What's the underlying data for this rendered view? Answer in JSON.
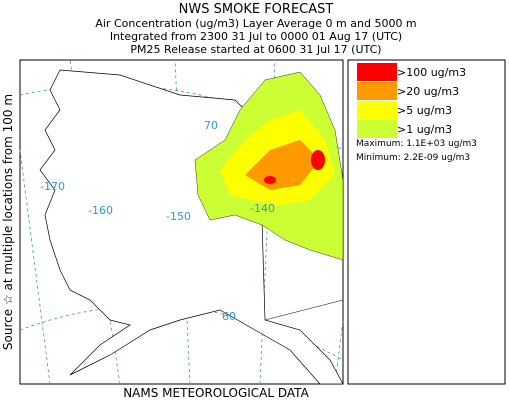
{
  "header": {
    "title": "NWS SMOKE FORECAST",
    "lines": [
      "Air Concentration (ug/m3) Layer Average    0 m and  5000 m",
      "Integrated from 2300 31 Jul to 0000 01 Aug 17 (UTC)",
      "PM25 Release started at 0600 31 Jul 17 (UTC)"
    ]
  },
  "side_label": "Source ☆ at multiple locations   from   100 m",
  "footer": "NAMS METEOROLOGICAL DATA",
  "map": {
    "labels": [
      "-170",
      "-160",
      "-150",
      "-140",
      "70",
      "60"
    ]
  },
  "legend": {
    "items": [
      {
        "label": ">100 ug/m3",
        "color": "#ff0000"
      },
      {
        "label": ">20 ug/m3",
        "color": "#ff9900"
      },
      {
        "label": ">5 ug/m3",
        "color": "#ffff00"
      },
      {
        "label": ">1 ug/m3",
        "color": "#ccff33"
      }
    ],
    "maximum": "Maximum: 1.1E+03 ug/m3",
    "minimum": "Minimum: 2.2E-09 ug/m3"
  }
}
